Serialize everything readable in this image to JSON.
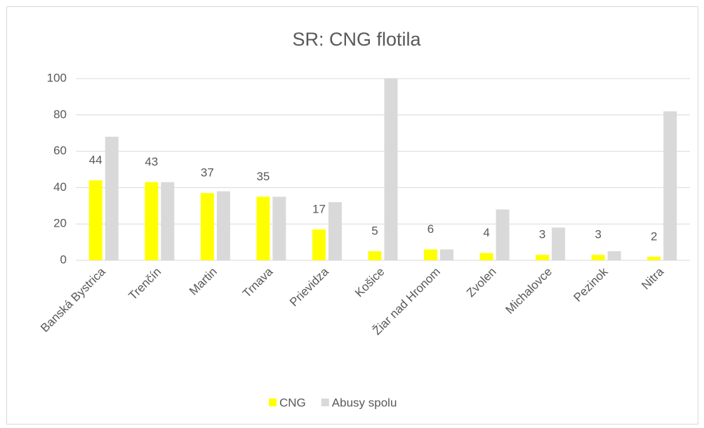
{
  "chart_data": {
    "type": "bar",
    "title": "SR: CNG flotila",
    "categories": [
      "Banská Bystrica",
      "Trenčín",
      "Martin",
      "Trnava",
      "Prievidza",
      "Košice",
      "Žiar nad Hronom",
      "Zvolen",
      "Michalovce",
      "Pezinok",
      "Nitra"
    ],
    "series": [
      {
        "name": "CNG",
        "color": "#ffff00",
        "values": [
          44,
          43,
          37,
          35,
          17,
          5,
          6,
          4,
          3,
          3,
          2
        ]
      },
      {
        "name": "Abusy spolu",
        "color": "#d9d9d9",
        "values": [
          68,
          43,
          38,
          35,
          32,
          100,
          6,
          28,
          18,
          5,
          82
        ]
      }
    ],
    "ylim": [
      0,
      100
    ],
    "yticks": [
      0,
      20,
      40,
      60,
      80,
      100
    ],
    "grid": true,
    "legend": "bottom"
  }
}
